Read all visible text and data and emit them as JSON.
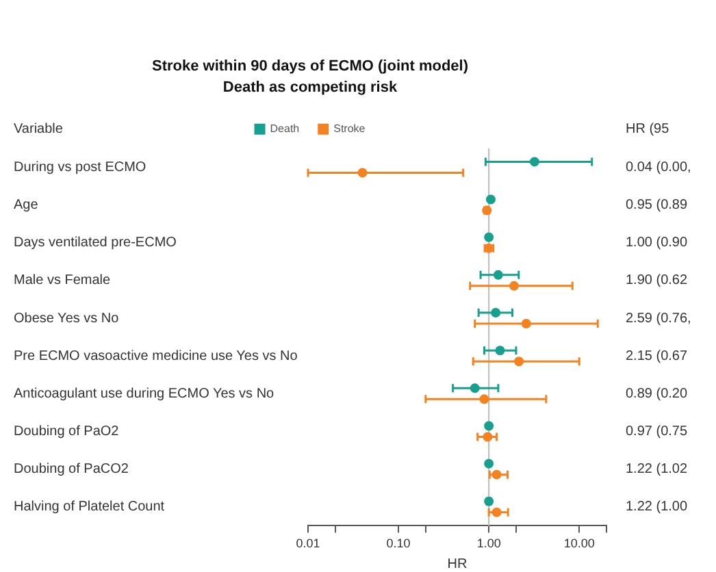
{
  "chart_data": {
    "type": "scatter",
    "title": "Stroke within 90 days of ECMO (joint model)",
    "subtitle": "Death as competing risk",
    "xlabel": "HR",
    "annotations": [
      "Variable",
      "HR (95"
    ],
    "categories": [
      "During vs post ECMO",
      "Age",
      "Days ventilated pre-ECMO",
      "Male vs Female",
      "Obese Yes vs No",
      "Pre ECMO vasoactive medicine use Yes vs No",
      "Anticoagulant use during ECMO Yes vs No",
      "Doubing of PaO2",
      "Doubing of PaCO2",
      "Halving of Platelet Count"
    ],
    "series": [
      {
        "name": "Death",
        "color": "#17a08e",
        "values": [
          3.2,
          1.05,
          1.0,
          1.27,
          1.19,
          1.33,
          0.7,
          1.0,
          1.0,
          1.0
        ],
        "errors": [
          [
            0.92,
            13.8
          ],
          [
            1.03,
            1.07
          ],
          [
            0.97,
            1.03
          ],
          [
            0.81,
            2.14
          ],
          [
            0.77,
            1.82
          ],
          [
            0.89,
            2.0
          ],
          [
            0.4,
            1.27
          ],
          [
            0.96,
            1.04
          ],
          [
            0.97,
            1.03
          ],
          [
            0.95,
            1.05
          ]
        ]
      },
      {
        "name": "Stroke",
        "color": "#f58220",
        "values": [
          0.04,
          0.95,
          1.0,
          1.9,
          2.59,
          2.15,
          0.89,
          0.97,
          1.22,
          1.22
        ],
        "errors": [
          [
            0.01,
            0.52
          ],
          [
            0.89,
            1.01
          ],
          [
            0.9,
            1.12
          ],
          [
            0.62,
            8.4
          ],
          [
            0.7,
            16
          ],
          [
            0.67,
            10
          ],
          [
            0.2,
            4.3
          ],
          [
            0.75,
            1.22
          ],
          [
            1.02,
            1.61
          ],
          [
            1.0,
            1.63
          ]
        ],
        "value_labels": [
          "0.04 (0.00,",
          "0.95 (0.89",
          "1.00 (0.90",
          "1.90 (0.62",
          "2.59 (0.76,",
          "2.15 (0.67",
          "0.89 (0.20",
          "0.97 (0.75",
          "1.22 (1.02",
          "1.22 (1.00"
        ]
      }
    ],
    "log": "x",
    "xlim": [
      0.01,
      20
    ],
    "xticks": [
      {
        "value": 0.01,
        "label": "0.01"
      },
      {
        "value": 0.02,
        "label": null
      },
      {
        "value": 0.1,
        "label": "0.10"
      },
      {
        "value": 0.2,
        "label": null
      },
      {
        "value": 1,
        "label": "1.00"
      },
      {
        "value": 2,
        "label": null
      },
      {
        "value": 10,
        "label": "10.00"
      },
      {
        "value": 20,
        "label": null
      }
    ],
    "ref_lines": [
      {
        "axis": "x",
        "value": 1,
        "color": "#bbbbbb"
      }
    ],
    "grid": false,
    "legend": "top",
    "marker": "circle",
    "orientation": "horizontal"
  }
}
